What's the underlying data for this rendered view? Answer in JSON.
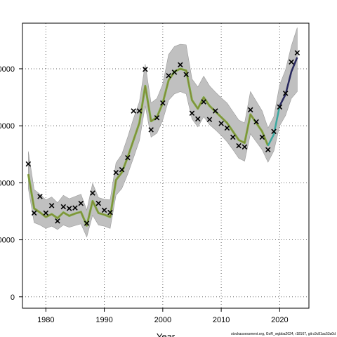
{
  "chart_data": {
    "type": "line",
    "xlabel": "Year",
    "ylabel": "",
    "xlim": [
      1976,
      2025
    ],
    "ylim": [
      -2000,
      48000
    ],
    "x_ticks": [
      1980,
      1990,
      2000,
      2010,
      2020
    ],
    "y_ticks": [
      0,
      10000,
      20000,
      30000,
      40000
    ],
    "y_tick_labels": [
      "0",
      "0000",
      "0000",
      "0000",
      "0000"
    ],
    "grid": true,
    "colors": {
      "band": "#c0c0c0",
      "band_edge": "#9a9a9a",
      "historical_line": "#7ab040",
      "historical_inner": "#8a7a3a",
      "recent_line": "#3aa8a0",
      "forecast_line": "#28285e",
      "points": "#000000",
      "grid": "#666666"
    },
    "series": [
      {
        "kind": "estimate",
        "x": [
          1977,
          1978,
          1979,
          1980,
          1981,
          1982,
          1983,
          1984,
          1985,
          1986,
          1987,
          1988,
          1989,
          1990,
          1991,
          1992,
          1993,
          1994,
          1995,
          1996,
          1997,
          1998,
          1999,
          2000,
          2001,
          2002,
          2003,
          2004,
          2005,
          2006,
          2007,
          2008,
          2009,
          2010,
          2011,
          2012,
          2013,
          2014,
          2015,
          2016,
          2017,
          2018
        ],
        "y": [
          21500,
          15500,
          14800,
          14000,
          14500,
          13800,
          14800,
          14200,
          14600,
          14900,
          12500,
          16800,
          14700,
          14400,
          14000,
          20500,
          21800,
          24500,
          27500,
          30500,
          37000,
          30800,
          31500,
          34000,
          38000,
          39500,
          40000,
          39700,
          34500,
          33000,
          35000,
          33500,
          32500,
          31500,
          30500,
          29000,
          27500,
          27000,
          32000,
          30500,
          29000,
          26500
        ]
      },
      {
        "kind": "recent",
        "x": [
          2018,
          2019,
          2020
        ],
        "y": [
          26500,
          28500,
          33500
        ]
      },
      {
        "kind": "forecast",
        "x": [
          2020,
          2021,
          2022,
          2023
        ],
        "y": [
          33500,
          35500,
          39500,
          42000
        ]
      }
    ],
    "band": {
      "x": [
        1977,
        1978,
        1979,
        1980,
        1981,
        1982,
        1983,
        1984,
        1985,
        1986,
        1987,
        1988,
        1989,
        1990,
        1991,
        1992,
        1993,
        1994,
        1995,
        1996,
        1997,
        1998,
        1999,
        2000,
        2001,
        2002,
        2003,
        2004,
        2005,
        2006,
        2007,
        2008,
        2009,
        2010,
        2011,
        2012,
        2013,
        2014,
        2015,
        2016,
        2017,
        2018,
        2019,
        2020,
        2021,
        2022,
        2023
      ],
      "lower": [
        19000,
        13000,
        12600,
        12000,
        12400,
        11800,
        12600,
        12200,
        12500,
        12800,
        10500,
        14300,
        12600,
        12400,
        12000,
        17800,
        19000,
        21500,
        24400,
        27400,
        33500,
        28000,
        28700,
        31000,
        34500,
        35600,
        36000,
        35600,
        31200,
        29800,
        31600,
        30200,
        29300,
        28300,
        27200,
        25800,
        24300,
        23800,
        28600,
        27200,
        25800,
        23600,
        25600,
        30000,
        31800,
        34800,
        36000
      ],
      "upper": [
        25500,
        18800,
        18000,
        17000,
        17500,
        16500,
        17800,
        17200,
        17600,
        18000,
        15200,
        19900,
        17400,
        17100,
        17000,
        23500,
        25000,
        28000,
        31300,
        34200,
        40800,
        34000,
        34800,
        37300,
        42500,
        43900,
        44300,
        44200,
        38200,
        36800,
        38700,
        37000,
        35900,
        34900,
        34000,
        32500,
        31000,
        30500,
        36000,
        34300,
        32600,
        29600,
        31600,
        37200,
        39800,
        44000,
        47200
      ]
    },
    "points": {
      "x": [
        1977,
        1978,
        1979,
        1980,
        1981,
        1982,
        1983,
        1984,
        1985,
        1986,
        1987,
        1988,
        1989,
        1990,
        1991,
        1992,
        1993,
        1994,
        1995,
        1996,
        1997,
        1998,
        1999,
        2000,
        2001,
        2002,
        2003,
        2004,
        2005,
        2006,
        2007,
        2008,
        2009,
        2010,
        2011,
        2012,
        2013,
        2014,
        2015,
        2016,
        2017,
        2018,
        2019,
        2020,
        2021,
        2022,
        2023
      ],
      "y": [
        23300,
        14700,
        17600,
        14700,
        16000,
        13300,
        15800,
        15500,
        15600,
        16400,
        12900,
        18200,
        16400,
        15200,
        14800,
        21800,
        22300,
        24400,
        32600,
        32600,
        39900,
        29300,
        31400,
        34000,
        38800,
        39400,
        40700,
        39000,
        32200,
        31200,
        34200,
        31100,
        32600,
        30400,
        29600,
        28000,
        26500,
        26300,
        32800,
        30700,
        28000,
        25800,
        29000,
        33300,
        35700,
        41200,
        42800
      ]
    }
  },
  "watermark": "stockassessment.org, GoR_wgbba2024, r18167, git:c9c81ac53a0d"
}
